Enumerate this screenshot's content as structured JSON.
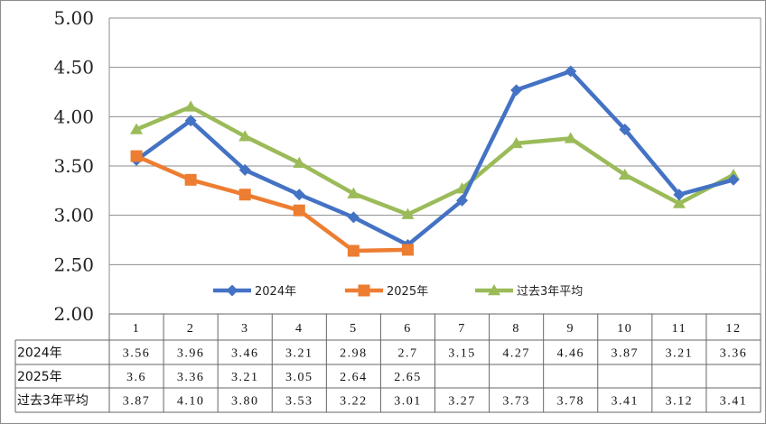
{
  "chart_data": {
    "type": "line",
    "categories": [
      "1",
      "2",
      "3",
      "4",
      "5",
      "6",
      "7",
      "8",
      "9",
      "10",
      "11",
      "12"
    ],
    "y_tick_labels": [
      "5.00",
      "4.50",
      "4.00",
      "3.50",
      "3.00",
      "2.50",
      "2.00"
    ],
    "ylim": [
      2.0,
      5.0
    ],
    "grid": true,
    "legend_position": "bottom-inside",
    "series": [
      {
        "name": "2024年",
        "color": "#4472C4",
        "marker": "diamond",
        "values": [
          3.56,
          3.96,
          3.46,
          3.21,
          2.98,
          2.7,
          3.15,
          4.27,
          4.46,
          3.87,
          3.21,
          3.36
        ],
        "table_values": [
          "3.56",
          "3.96",
          "3.46",
          "3.21",
          "2.98",
          "2.7",
          "3.15",
          "4.27",
          "4.46",
          "3.87",
          "3.21",
          "3.36"
        ]
      },
      {
        "name": "2025年",
        "color": "#ED7D31",
        "marker": "square",
        "values": [
          3.6,
          3.36,
          3.21,
          3.05,
          2.64,
          2.65,
          null,
          null,
          null,
          null,
          null,
          null
        ],
        "table_values": [
          "3.6",
          "3.36",
          "3.21",
          "3.05",
          "2.64",
          "2.65",
          "",
          "",
          "",
          "",
          "",
          ""
        ]
      },
      {
        "name": "过去3年平均",
        "color": "#9BBB59",
        "marker": "triangle",
        "values": [
          3.87,
          4.1,
          3.8,
          3.53,
          3.22,
          3.01,
          3.27,
          3.73,
          3.78,
          3.41,
          3.12,
          3.41
        ],
        "table_values": [
          "3.87",
          "4.10",
          "3.80",
          "3.53",
          "3.22",
          "3.01",
          "3.27",
          "3.73",
          "3.78",
          "3.41",
          "3.12",
          "3.41"
        ]
      }
    ]
  }
}
